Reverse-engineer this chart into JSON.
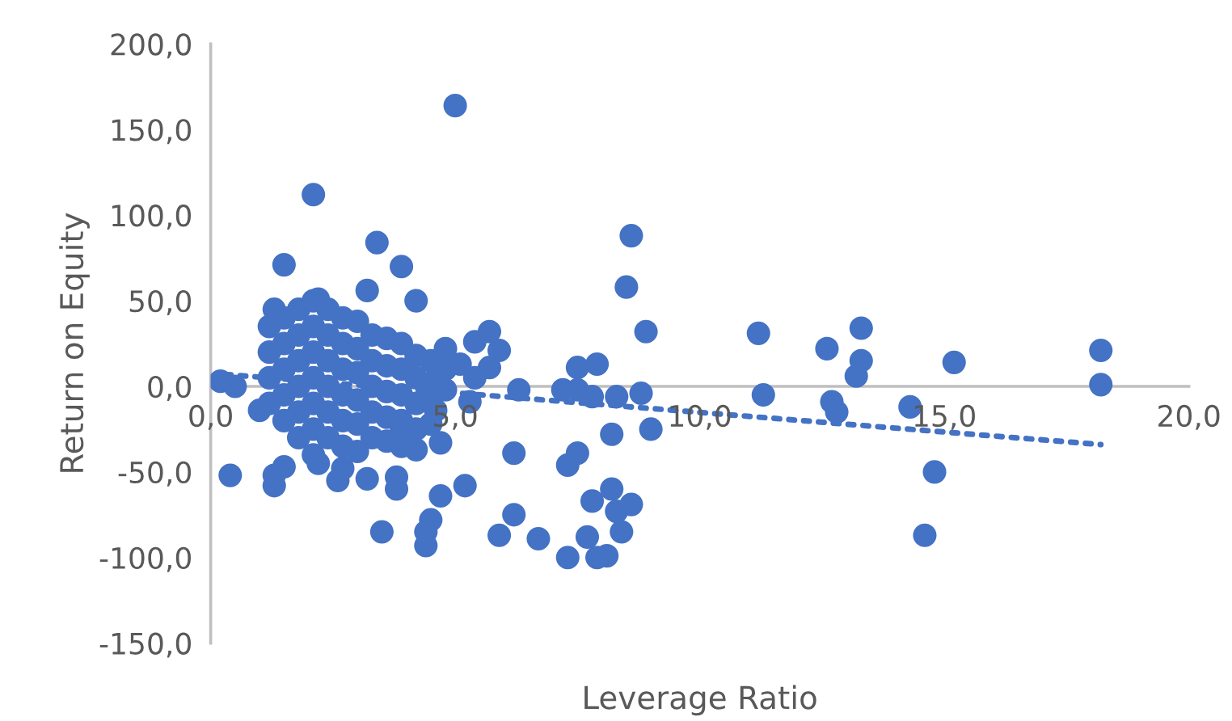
{
  "chart_data": {
    "type": "scatter",
    "xlabel": "Leverage Ratio",
    "ylabel": "Return on Equity",
    "xlim": [
      0,
      20
    ],
    "ylim": [
      -150,
      200
    ],
    "xticks": [
      {
        "value": 0,
        "label": "0,0"
      },
      {
        "value": 5,
        "label": "5,0"
      },
      {
        "value": 10,
        "label": "10,0"
      },
      {
        "value": 15,
        "label": "15,0"
      },
      {
        "value": 20,
        "label": "20,0"
      }
    ],
    "yticks": [
      {
        "value": -150,
        "label": "-150,0"
      },
      {
        "value": -100,
        "label": "-100,0"
      },
      {
        "value": -50,
        "label": "-50,0"
      },
      {
        "value": 0,
        "label": "0,0"
      },
      {
        "value": 50,
        "label": "50,0"
      },
      {
        "value": 100,
        "label": "100,0"
      },
      {
        "value": 150,
        "label": "150,0"
      },
      {
        "value": 200,
        "label": "200,0"
      }
    ],
    "grid": false,
    "legend": false,
    "marker": "circle",
    "series": [
      {
        "color": "#4472c4",
        "x": [
          5.0,
          2.1,
          1.5,
          3.4,
          3.9,
          3.2,
          4.2,
          2.2,
          8.6,
          8.5,
          8.9,
          5.7,
          5.9,
          5.4,
          5.7,
          7.5,
          7.9,
          7.5,
          7.2,
          6.3,
          7.8,
          8.8,
          8.3,
          11.2,
          11.3,
          12.6,
          12.7,
          12.8,
          13.3,
          13.3,
          13.2,
          14.3,
          14.8,
          14.6,
          15.2,
          18.2,
          18.2,
          9.0,
          8.2,
          7.5,
          7.3,
          8.2,
          8.3,
          8.6,
          7.8,
          7.7,
          8.4,
          8.1,
          7.9,
          7.3,
          6.7,
          6.2,
          5.9,
          6.2,
          5.2,
          4.7,
          4.5,
          4.4,
          4.4,
          3.5,
          3.8,
          4.6,
          4.7,
          5.3,
          5.4,
          0.4,
          0.5,
          0.2,
          1.3,
          1.5,
          1.3,
          2.2,
          2.6,
          3.2,
          3.8,
          4.2,
          3.9,
          1.2,
          1.2,
          1.2,
          1.2,
          1.3,
          1.5,
          1.5,
          1.5,
          1.5,
          1.5,
          1.8,
          1.8,
          1.8,
          1.8,
          1.8,
          1.8,
          2.1,
          2.1,
          2.1,
          2.1,
          2.1,
          2.1,
          2.1,
          2.4,
          2.4,
          2.4,
          2.4,
          2.4,
          2.4,
          2.7,
          2.7,
          2.7,
          2.7,
          2.7,
          2.7,
          2.7,
          3.0,
          3.0,
          3.0,
          3.0,
          3.0,
          3.0,
          3.3,
          3.3,
          3.3,
          3.3,
          3.3,
          3.6,
          3.6,
          3.6,
          3.6,
          3.6,
          3.9,
          3.9,
          3.9,
          3.9,
          3.9,
          4.2,
          4.2,
          4.2,
          4.2,
          4.5,
          4.5,
          4.5,
          4.5,
          4.8,
          4.8,
          4.8,
          5.1,
          1.0
        ],
        "values": [
          164,
          112,
          71,
          84,
          70,
          56,
          50,
          51,
          88,
          58,
          32,
          32,
          21,
          26,
          11,
          11,
          13,
          -2,
          -2,
          -2,
          -6,
          -4,
          -6,
          31,
          -5,
          22,
          -9,
          -15,
          34,
          15,
          6,
          -12,
          -50,
          -87,
          14,
          21,
          1,
          -25,
          -28,
          -39,
          -46,
          -60,
          -73,
          -69,
          -67,
          -88,
          -85,
          -99,
          -100,
          -100,
          -89,
          -75,
          -87,
          -39,
          -58,
          -64,
          -78,
          -85,
          -93,
          -85,
          -60,
          -14,
          -33,
          -9,
          5,
          -52,
          0,
          3,
          -58,
          -47,
          -52,
          -45,
          -55,
          -54,
          -53,
          -37,
          -24,
          35,
          20,
          5,
          -10,
          45,
          40,
          25,
          10,
          -5,
          -20,
          45,
          30,
          15,
          0,
          -15,
          -30,
          50,
          35,
          20,
          5,
          -10,
          -25,
          -40,
          45,
          30,
          15,
          0,
          -15,
          -30,
          40,
          25,
          10,
          -5,
          -20,
          -35,
          -48,
          38,
          22,
          8,
          -8,
          -22,
          -38,
          30,
          15,
          0,
          -15,
          -30,
          28,
          12,
          -3,
          -18,
          -32,
          25,
          10,
          -5,
          -20,
          -35,
          18,
          5,
          -10,
          -25,
          15,
          2,
          -8,
          -22,
          22,
          10,
          -2,
          13,
          -14
        ]
      },
      {
        "type": "line",
        "color": "#4472c4",
        "line_style": "dotted",
        "marker": "none",
        "x": [
          0.3,
          18.2
        ],
        "values": [
          7,
          -34
        ]
      }
    ]
  }
}
